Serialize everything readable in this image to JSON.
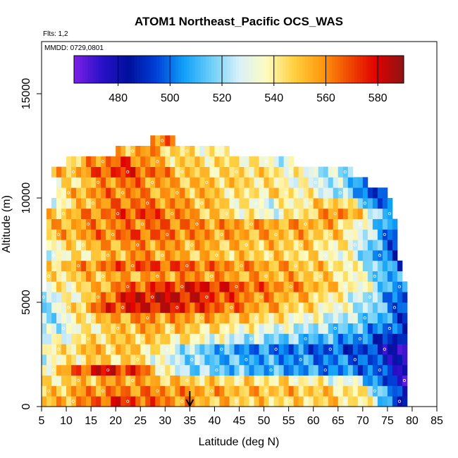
{
  "chart_data": {
    "type": "heatmap",
    "title": "ATOM1 Northeast_Pacific OCS_WAS",
    "note_flights": "Flts: 1,2",
    "note_dates": "MMDD: 0729,0801",
    "xlabel": "Latitude (deg N)",
    "ylabel": "Altitude (m)",
    "xlim": [
      5,
      85
    ],
    "ylim": [
      0,
      17500
    ],
    "x_ticks": [
      "5",
      "10",
      "15",
      "20",
      "25",
      "30",
      "35",
      "40",
      "45",
      "50",
      "55",
      "60",
      "65",
      "70",
      "75",
      "80",
      "85"
    ],
    "y_ticks": [
      "0",
      "5000",
      "10000",
      "15000"
    ],
    "colorbar": {
      "range": [
        463,
        590
      ],
      "ticks": [
        "480",
        "500",
        "520",
        "540",
        "560",
        "580"
      ],
      "colors": [
        "#7b20e8",
        "#2a10c8",
        "#00109c",
        "#0040d8",
        "#10a0f8",
        "#6ccff8",
        "#d8f0fa",
        "#fffcc0",
        "#ffd040",
        "#ff9a10",
        "#f04a00",
        "#e00000",
        "#8c1414"
      ]
    },
    "marker": {
      "latitude": 35,
      "symbol": "down-arrow"
    },
    "altitude_bands": [
      {
        "alt": [
          0,
          500
        ],
        "lat": [
          5,
          79
        ],
        "profile": [
          [
            5,
            548
          ],
          [
            15,
            562
          ],
          [
            20,
            575
          ],
          [
            28,
            565
          ],
          [
            40,
            550
          ],
          [
            55,
            545
          ],
          [
            65,
            548
          ],
          [
            72,
            535
          ],
          [
            78,
            480
          ]
        ]
      },
      {
        "alt": [
          500,
          1000
        ],
        "lat": [
          5,
          79
        ],
        "profile": [
          [
            5,
            545
          ],
          [
            15,
            560
          ],
          [
            25,
            562
          ],
          [
            35,
            558
          ],
          [
            45,
            552
          ],
          [
            60,
            550
          ],
          [
            70,
            540
          ],
          [
            76,
            500
          ],
          [
            79,
            478
          ]
        ]
      },
      {
        "alt": [
          1000,
          1500
        ],
        "lat": [
          5,
          79
        ],
        "profile": [
          [
            5,
            540
          ],
          [
            15,
            552
          ],
          [
            22,
            558
          ],
          [
            30,
            550
          ],
          [
            40,
            545
          ],
          [
            55,
            542
          ],
          [
            68,
            530
          ],
          [
            75,
            490
          ],
          [
            79,
            478
          ]
        ]
      },
      {
        "alt": [
          1500,
          2000
        ],
        "lat": [
          5,
          79
        ],
        "profile": [
          [
            5,
            535
          ],
          [
            12,
            565
          ],
          [
            17,
            580
          ],
          [
            25,
            570
          ],
          [
            30,
            535
          ],
          [
            35,
            520
          ],
          [
            45,
            512
          ],
          [
            60,
            505
          ],
          [
            72,
            500
          ],
          [
            77,
            485
          ],
          [
            79,
            470
          ]
        ]
      },
      {
        "alt": [
          2000,
          2500
        ],
        "lat": [
          5,
          79
        ],
        "profile": [
          [
            5,
            530
          ],
          [
            15,
            548
          ],
          [
            25,
            545
          ],
          [
            30,
            528
          ],
          [
            40,
            512
          ],
          [
            55,
            505
          ],
          [
            70,
            500
          ],
          [
            77,
            482
          ],
          [
            79,
            468
          ]
        ]
      },
      {
        "alt": [
          2500,
          3000
        ],
        "lat": [
          5,
          79
        ],
        "profile": [
          [
            5,
            535
          ],
          [
            15,
            552
          ],
          [
            25,
            548
          ],
          [
            35,
            520
          ],
          [
            45,
            505
          ],
          [
            60,
            498
          ],
          [
            72,
            492
          ],
          [
            78,
            470
          ]
        ]
      },
      {
        "alt": [
          3000,
          3500
        ],
        "lat": [
          5,
          79
        ],
        "profile": [
          [
            5,
            525
          ],
          [
            15,
            545
          ],
          [
            25,
            550
          ],
          [
            35,
            540
          ],
          [
            45,
            525
          ],
          [
            55,
            515
          ],
          [
            68,
            505
          ],
          [
            75,
            490
          ],
          [
            79,
            480
          ]
        ]
      },
      {
        "alt": [
          3500,
          4000
        ],
        "lat": [
          5,
          79
        ],
        "profile": [
          [
            5,
            520
          ],
          [
            15,
            540
          ],
          [
            25,
            555
          ],
          [
            35,
            548
          ],
          [
            48,
            535
          ],
          [
            60,
            522
          ],
          [
            70,
            510
          ],
          [
            77,
            495
          ]
        ]
      },
      {
        "alt": [
          4000,
          4500
        ],
        "lat": [
          5,
          79
        ],
        "profile": [
          [
            5,
            515
          ],
          [
            15,
            548
          ],
          [
            25,
            560
          ],
          [
            38,
            555
          ],
          [
            50,
            545
          ],
          [
            62,
            530
          ],
          [
            72,
            515
          ],
          [
            78,
            495
          ]
        ]
      },
      {
        "alt": [
          4500,
          5000
        ],
        "lat": [
          5,
          79
        ],
        "profile": [
          [
            5,
            520
          ],
          [
            12,
            545
          ],
          [
            18,
            572
          ],
          [
            28,
            580
          ],
          [
            38,
            570
          ],
          [
            50,
            555
          ],
          [
            62,
            540
          ],
          [
            72,
            520
          ],
          [
            78,
            495
          ]
        ]
      },
      {
        "alt": [
          5000,
          5500
        ],
        "lat": [
          5,
          79
        ],
        "profile": [
          [
            5,
            520
          ],
          [
            15,
            548
          ],
          [
            22,
            578
          ],
          [
            30,
            582
          ],
          [
            38,
            575
          ],
          [
            48,
            560
          ],
          [
            60,
            548
          ],
          [
            70,
            525
          ],
          [
            78,
            495
          ]
        ]
      },
      {
        "alt": [
          5500,
          6000
        ],
        "lat": [
          6,
          79
        ],
        "profile": [
          [
            6,
            535
          ],
          [
            15,
            548
          ],
          [
            22,
            565
          ],
          [
            30,
            572
          ],
          [
            38,
            578
          ],
          [
            48,
            565
          ],
          [
            60,
            555
          ],
          [
            70,
            535
          ],
          [
            78,
            500
          ]
        ]
      },
      {
        "alt": [
          6000,
          6500
        ],
        "lat": [
          6,
          78
        ],
        "profile": [
          [
            6,
            540
          ],
          [
            15,
            552
          ],
          [
            25,
            555
          ],
          [
            35,
            560
          ],
          [
            45,
            555
          ],
          [
            58,
            552
          ],
          [
            68,
            538
          ],
          [
            76,
            505
          ]
        ]
      },
      {
        "alt": [
          6500,
          7000
        ],
        "lat": [
          6,
          78
        ],
        "profile": [
          [
            6,
            545
          ],
          [
            14,
            558
          ],
          [
            22,
            568
          ],
          [
            30,
            570
          ],
          [
            40,
            562
          ],
          [
            52,
            555
          ],
          [
            65,
            545
          ],
          [
            74,
            515
          ],
          [
            78,
            490
          ]
        ]
      },
      {
        "alt": [
          7000,
          7500
        ],
        "lat": [
          6,
          77
        ],
        "profile": [
          [
            6,
            530
          ],
          [
            15,
            545
          ],
          [
            25,
            560
          ],
          [
            35,
            552
          ],
          [
            45,
            548
          ],
          [
            58,
            545
          ],
          [
            68,
            530
          ],
          [
            75,
            495
          ]
        ]
      },
      {
        "alt": [
          7500,
          8000
        ],
        "lat": [
          6,
          77
        ],
        "profile": [
          [
            6,
            535
          ],
          [
            15,
            552
          ],
          [
            25,
            560
          ],
          [
            35,
            555
          ],
          [
            45,
            550
          ],
          [
            58,
            548
          ],
          [
            68,
            535
          ],
          [
            75,
            500
          ]
        ]
      },
      {
        "alt": [
          8000,
          8500
        ],
        "lat": [
          6,
          77
        ],
        "profile": [
          [
            6,
            548
          ],
          [
            15,
            560
          ],
          [
            25,
            568
          ],
          [
            35,
            560
          ],
          [
            45,
            555
          ],
          [
            58,
            552
          ],
          [
            66,
            545
          ],
          [
            72,
            520
          ],
          [
            76,
            495
          ]
        ]
      },
      {
        "alt": [
          8500,
          9000
        ],
        "lat": [
          6,
          77
        ],
        "profile": [
          [
            6,
            550
          ],
          [
            14,
            558
          ],
          [
            22,
            562
          ],
          [
            30,
            565
          ],
          [
            40,
            558
          ],
          [
            52,
            555
          ],
          [
            62,
            555
          ],
          [
            68,
            540
          ],
          [
            74,
            510
          ]
        ]
      },
      {
        "alt": [
          9000,
          9500
        ],
        "lat": [
          6,
          76
        ],
        "profile": [
          [
            6,
            545
          ],
          [
            15,
            560
          ],
          [
            25,
            572
          ],
          [
            32,
            562
          ],
          [
            42,
            545
          ],
          [
            52,
            532
          ],
          [
            60,
            548
          ],
          [
            66,
            565
          ],
          [
            72,
            530
          ],
          [
            76,
            505
          ]
        ]
      },
      {
        "alt": [
          9500,
          10000
        ],
        "lat": [
          7,
          76
        ],
        "profile": [
          [
            7,
            530
          ],
          [
            15,
            555
          ],
          [
            22,
            565
          ],
          [
            30,
            560
          ],
          [
            40,
            550
          ],
          [
            50,
            530
          ],
          [
            60,
            545
          ],
          [
            66,
            550
          ],
          [
            72,
            505
          ],
          [
            76,
            490
          ]
        ]
      },
      {
        "alt": [
          10000,
          10500
        ],
        "lat": [
          8,
          75
        ],
        "profile": [
          [
            8,
            540
          ],
          [
            15,
            560
          ],
          [
            22,
            562
          ],
          [
            30,
            555
          ],
          [
            38,
            552
          ],
          [
            45,
            540
          ],
          [
            52,
            545
          ],
          [
            58,
            540
          ],
          [
            66,
            520
          ],
          [
            72,
            495
          ],
          [
            75,
            485
          ]
        ]
      },
      {
        "alt": [
          10500,
          11000
        ],
        "lat": [
          8,
          71
        ],
        "profile": [
          [
            8,
            535
          ],
          [
            15,
            552
          ],
          [
            22,
            565
          ],
          [
            30,
            555
          ],
          [
            38,
            550
          ],
          [
            48,
            545
          ],
          [
            56,
            535
          ],
          [
            64,
            525
          ],
          [
            70,
            505
          ]
        ]
      },
      {
        "alt": [
          11000,
          11500
        ],
        "lat": [
          7,
          68
        ],
        "profile": [
          [
            7,
            548
          ],
          [
            12,
            555
          ],
          [
            20,
            575
          ],
          [
            28,
            565
          ],
          [
            35,
            548
          ],
          [
            42,
            545
          ],
          [
            50,
            545
          ],
          [
            56,
            538
          ],
          [
            62,
            525
          ],
          [
            67,
            520
          ]
        ]
      },
      {
        "alt": [
          11500,
          12000
        ],
        "lat": [
          10,
          56
        ],
        "profile": [
          [
            10,
            540
          ],
          [
            16,
            560
          ],
          [
            22,
            570
          ],
          [
            30,
            548
          ],
          [
            38,
            545
          ],
          [
            46,
            542
          ],
          [
            52,
            532
          ],
          [
            56,
            525
          ]
        ]
      },
      {
        "alt": [
          12000,
          12500
        ],
        "lat": [
          20,
          43
        ],
        "profile": [
          [
            20,
            548
          ],
          [
            26,
            560
          ],
          [
            32,
            545
          ],
          [
            38,
            540
          ],
          [
            43,
            535
          ]
        ]
      },
      {
        "alt": [
          12500,
          13000
        ],
        "lat": [
          27,
          32
        ],
        "profile": [
          [
            27,
            560
          ],
          [
            30,
            568
          ],
          [
            32,
            560
          ]
        ]
      }
    ]
  }
}
